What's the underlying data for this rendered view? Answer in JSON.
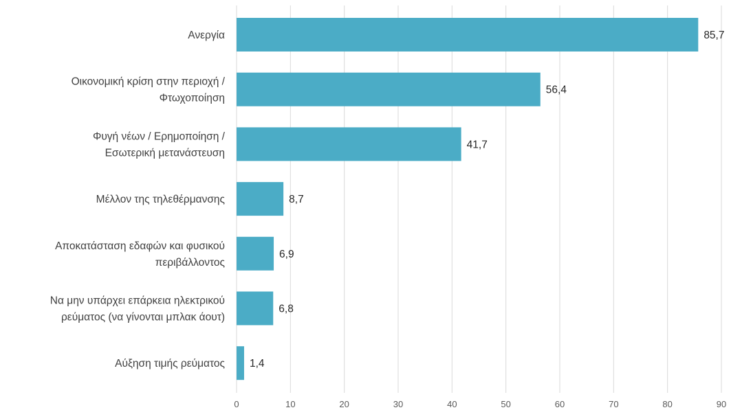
{
  "chart_data": {
    "type": "bar",
    "orientation": "horizontal",
    "title": "",
    "xlabel": "",
    "ylabel": "",
    "xlim": [
      0,
      90
    ],
    "x_ticks": [
      0,
      10,
      20,
      30,
      40,
      50,
      60,
      70,
      80,
      90
    ],
    "grid": "vertical",
    "legend": "none",
    "bar_color": "#4BACC6",
    "categories": [
      [
        "Ανεργία"
      ],
      [
        "Οικονομική κρίση στην περιοχή /",
        "Φτωχοποίηση"
      ],
      [
        "Φυγή νέων / Ερημοποίηση /",
        "Εσωτερική μετανάστευση"
      ],
      [
        "Μέλλον της τηλεθέρμανσης"
      ],
      [
        "Αποκατάσταση εδαφών και φυσικού",
        "περιβάλλοντος"
      ],
      [
        "Να μην υπάρχει επάρκεια ηλεκτρικού",
        "ρεύματος (να γίνονται μπλακ άουτ)"
      ],
      [
        "Αύξηση τιμής ρεύματος"
      ]
    ],
    "values": [
      85.7,
      56.4,
      41.7,
      8.7,
      6.9,
      6.8,
      1.4
    ],
    "value_labels": [
      "85,7",
      "56,4",
      "41,7",
      "8,7",
      "6,9",
      "6,8",
      "1,4"
    ]
  }
}
